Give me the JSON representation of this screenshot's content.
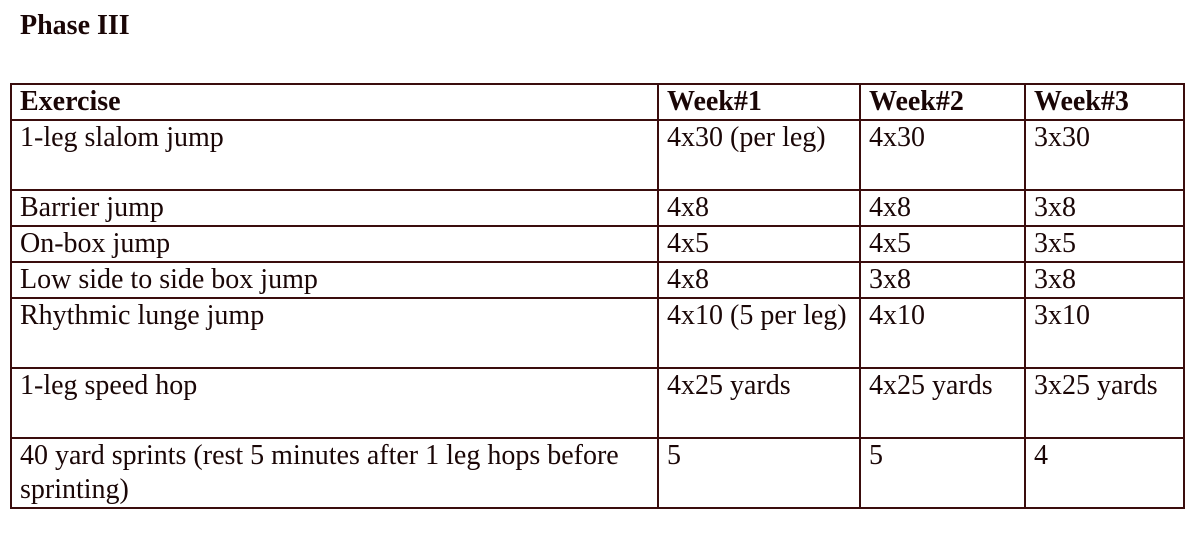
{
  "heading": "Phase III",
  "table": {
    "headers": [
      "Exercise",
      "Week#1",
      "Week#2",
      "Week#3"
    ],
    "rows": [
      [
        "1-leg slalom jump",
        "4x30 (per leg)",
        "4x30",
        "3x30"
      ],
      [
        "Barrier jump",
        "4x8",
        "4x8",
        "3x8"
      ],
      [
        "On-box jump",
        "4x5",
        "4x5",
        "3x5"
      ],
      [
        "Low side to side box jump",
        "4x8",
        "3x8",
        "3x8"
      ],
      [
        "Rhythmic lunge jump",
        "4x10 (5 per leg)",
        "4x10",
        "3x10"
      ],
      [
        "1-leg speed hop",
        "4x25 yards",
        "4x25 yards",
        "3x25 yards"
      ],
      [
        "40 yard sprints (rest 5 minutes after 1 leg hops before sprinting)",
        "5",
        "5",
        "4"
      ]
    ]
  }
}
